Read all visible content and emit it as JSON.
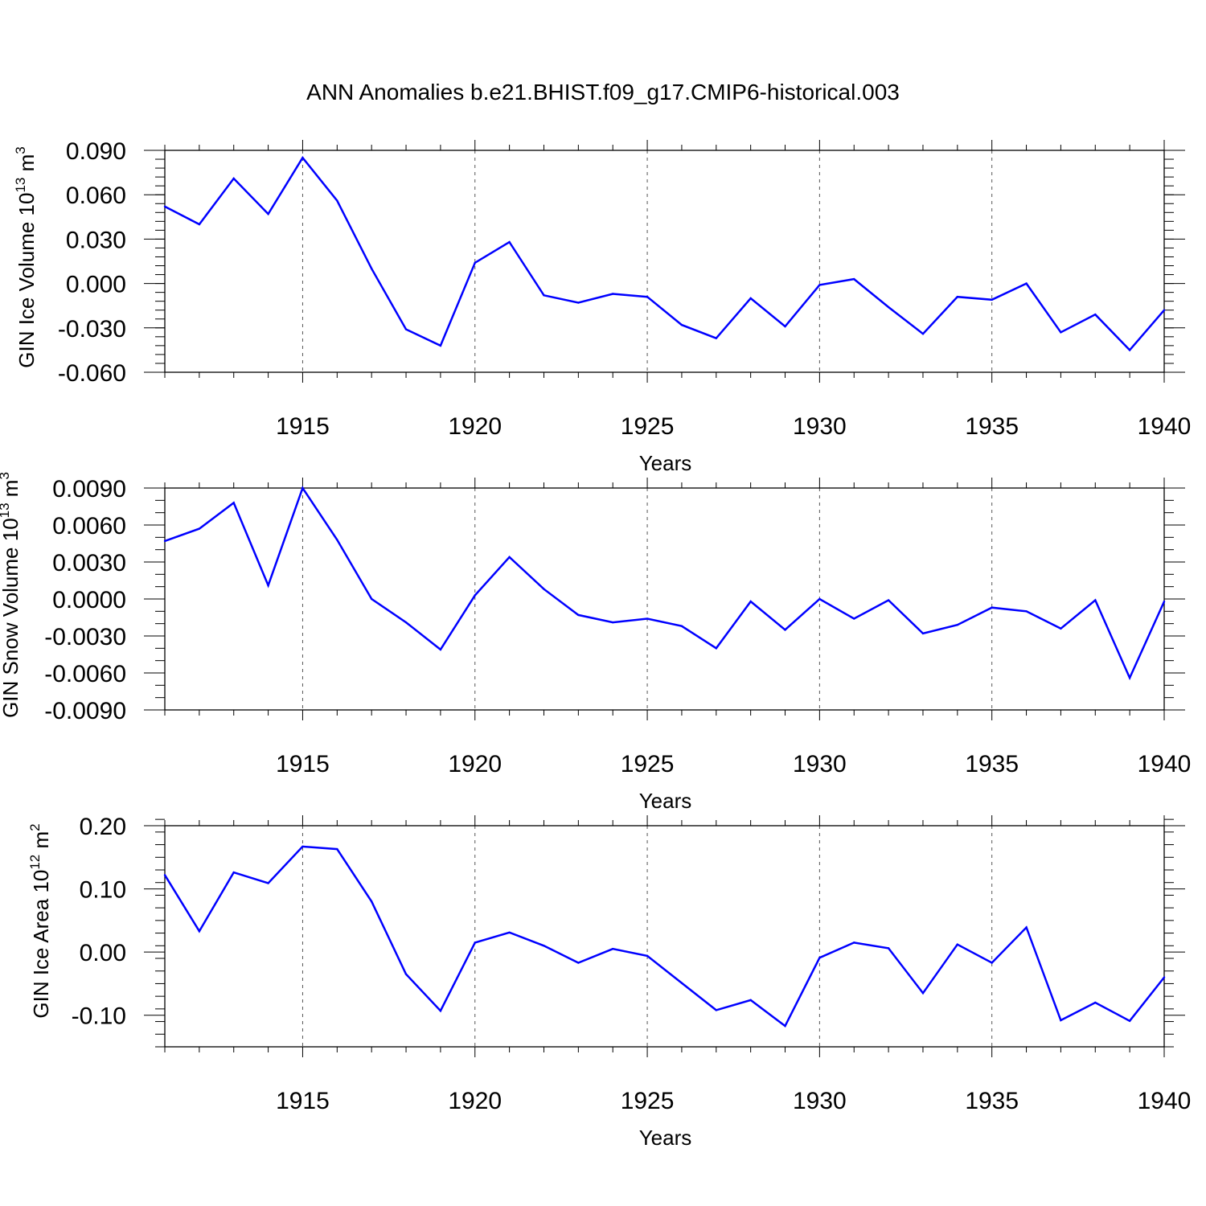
{
  "title": "ANN Anomalies b.e21.BHIST.f09_g17.CMIP6-historical.003",
  "line_color": "#0000ff",
  "chart_data": [
    {
      "type": "line",
      "ylabel_main": "GIN Ice Volume 10",
      "ylabel_exp": "13",
      "ylabel_unit": " m",
      "ylabel_unit_exp": "3",
      "xlabel": "Years",
      "xlim": [
        1911,
        1940
      ],
      "ylim": [
        -0.06,
        0.09
      ],
      "xticks": [
        1915,
        1920,
        1925,
        1930,
        1935,
        1940
      ],
      "xtick_labels": [
        "1915",
        "1920",
        "1925",
        "1930",
        "1935",
        "1940"
      ],
      "yticks": [
        -0.06,
        -0.03,
        0.0,
        0.03,
        0.06,
        0.09
      ],
      "ytick_labels": [
        "-0.060",
        "-0.030",
        "0.000",
        "0.030",
        "0.060",
        "0.090"
      ],
      "yminor_step": 0.006,
      "x": [
        1911,
        1912,
        1913,
        1914,
        1915,
        1916,
        1917,
        1918,
        1919,
        1920,
        1921,
        1922,
        1923,
        1924,
        1925,
        1926,
        1927,
        1928,
        1929,
        1930,
        1931,
        1932,
        1933,
        1934,
        1935,
        1936,
        1937,
        1938,
        1939,
        1940
      ],
      "series": [
        {
          "values": [
            0.052,
            0.04,
            0.071,
            0.047,
            0.085,
            0.056,
            0.01,
            -0.031,
            -0.042,
            0.014,
            0.028,
            -0.008,
            -0.013,
            -0.007,
            -0.009,
            -0.028,
            -0.037,
            -0.01,
            -0.029,
            -0.001,
            0.003,
            -0.016,
            -0.034,
            -0.009,
            -0.011,
            0.0,
            -0.033,
            -0.021,
            -0.045,
            -0.018
          ]
        }
      ]
    },
    {
      "type": "line",
      "ylabel_main": "GIN Snow Volume 10",
      "ylabel_exp": "13",
      "ylabel_unit": " m",
      "ylabel_unit_exp": "3",
      "xlabel": "Years",
      "xlim": [
        1911,
        1940
      ],
      "ylim": [
        -0.009,
        0.009
      ],
      "xticks": [
        1915,
        1920,
        1925,
        1930,
        1935,
        1940
      ],
      "xtick_labels": [
        "1915",
        "1920",
        "1925",
        "1930",
        "1935",
        "1940"
      ],
      "yticks": [
        -0.009,
        -0.006,
        -0.003,
        0.0,
        0.003,
        0.006,
        0.009
      ],
      "ytick_labels": [
        "-0.0090",
        "-0.0060",
        "-0.0030",
        "0.0000",
        "0.0030",
        "0.0060",
        "0.0090"
      ],
      "yminor_step": 0.001,
      "x": [
        1911,
        1912,
        1913,
        1914,
        1915,
        1916,
        1917,
        1918,
        1919,
        1920,
        1921,
        1922,
        1923,
        1924,
        1925,
        1926,
        1927,
        1928,
        1929,
        1930,
        1931,
        1932,
        1933,
        1934,
        1935,
        1936,
        1937,
        1938,
        1939,
        1940
      ],
      "series": [
        {
          "values": [
            0.0047,
            0.0057,
            0.0078,
            0.0011,
            0.009,
            0.0048,
            0.0,
            -0.0019,
            -0.0041,
            0.0003,
            0.0034,
            0.0008,
            -0.0013,
            -0.0019,
            -0.0016,
            -0.0022,
            -0.004,
            -0.0002,
            -0.0025,
            0.0,
            -0.0016,
            -0.0001,
            -0.0028,
            -0.0021,
            -0.0007,
            -0.001,
            -0.0024,
            -0.0001,
            -0.0064,
            -0.0002
          ]
        }
      ]
    },
    {
      "type": "line",
      "ylabel_main": "GIN Ice Area 10",
      "ylabel_exp": "12",
      "ylabel_unit": " m",
      "ylabel_unit_exp": "2",
      "xlabel": "Years",
      "xlim": [
        1911,
        1940
      ],
      "ylim": [
        -0.15,
        0.2
      ],
      "xticks": [
        1915,
        1920,
        1925,
        1930,
        1935,
        1940
      ],
      "xtick_labels": [
        "1915",
        "1920",
        "1925",
        "1930",
        "1935",
        "1940"
      ],
      "yticks": [
        -0.1,
        0.0,
        0.1,
        0.2
      ],
      "ytick_labels": [
        "-0.10",
        "0.00",
        "0.10",
        "0.20"
      ],
      "yminor_step": 0.02,
      "x": [
        1911,
        1912,
        1913,
        1914,
        1915,
        1916,
        1917,
        1918,
        1919,
        1920,
        1921,
        1922,
        1923,
        1924,
        1925,
        1926,
        1927,
        1928,
        1929,
        1930,
        1931,
        1932,
        1933,
        1934,
        1935,
        1936,
        1937,
        1938,
        1939,
        1940
      ],
      "series": [
        {
          "values": [
            0.122,
            0.033,
            0.126,
            0.109,
            0.167,
            0.163,
            0.08,
            -0.035,
            -0.093,
            0.015,
            0.031,
            0.01,
            -0.017,
            0.005,
            -0.006,
            -0.049,
            -0.092,
            -0.076,
            -0.117,
            -0.009,
            0.015,
            0.006,
            -0.065,
            0.012,
            -0.017,
            0.039,
            -0.108,
            -0.08,
            -0.109,
            -0.04
          ]
        }
      ]
    }
  ]
}
